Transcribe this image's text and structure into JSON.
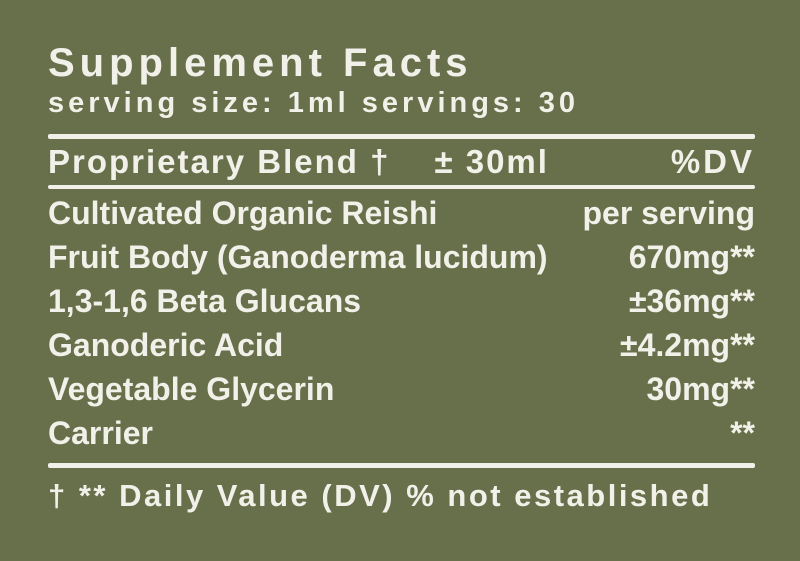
{
  "label": {
    "title": "Supplement Facts",
    "serving_line": "serving size: 1ml servings: 30",
    "header": {
      "name": "Proprietary Blend †",
      "amount": "± 30ml",
      "dv": "%DV"
    },
    "rows": [
      {
        "name": "Cultivated Organic Reishi",
        "value": "per serving"
      },
      {
        "name": "Fruit Body (Ganoderma lucidum)",
        "value": "670mg**"
      },
      {
        "name": "1,3-1,6 Beta Glucans",
        "value": "±36mg**"
      },
      {
        "name": "Ganoderic Acid",
        "value": "±4.2mg**"
      },
      {
        "name": "Vegetable Glycerin",
        "value": "30mg**"
      },
      {
        "name": "Carrier",
        "value": "**"
      }
    ],
    "footnote": "† ** Daily Value (DV) % not established",
    "colors": {
      "background": "#67704a",
      "text": "#f1f0e9"
    }
  }
}
